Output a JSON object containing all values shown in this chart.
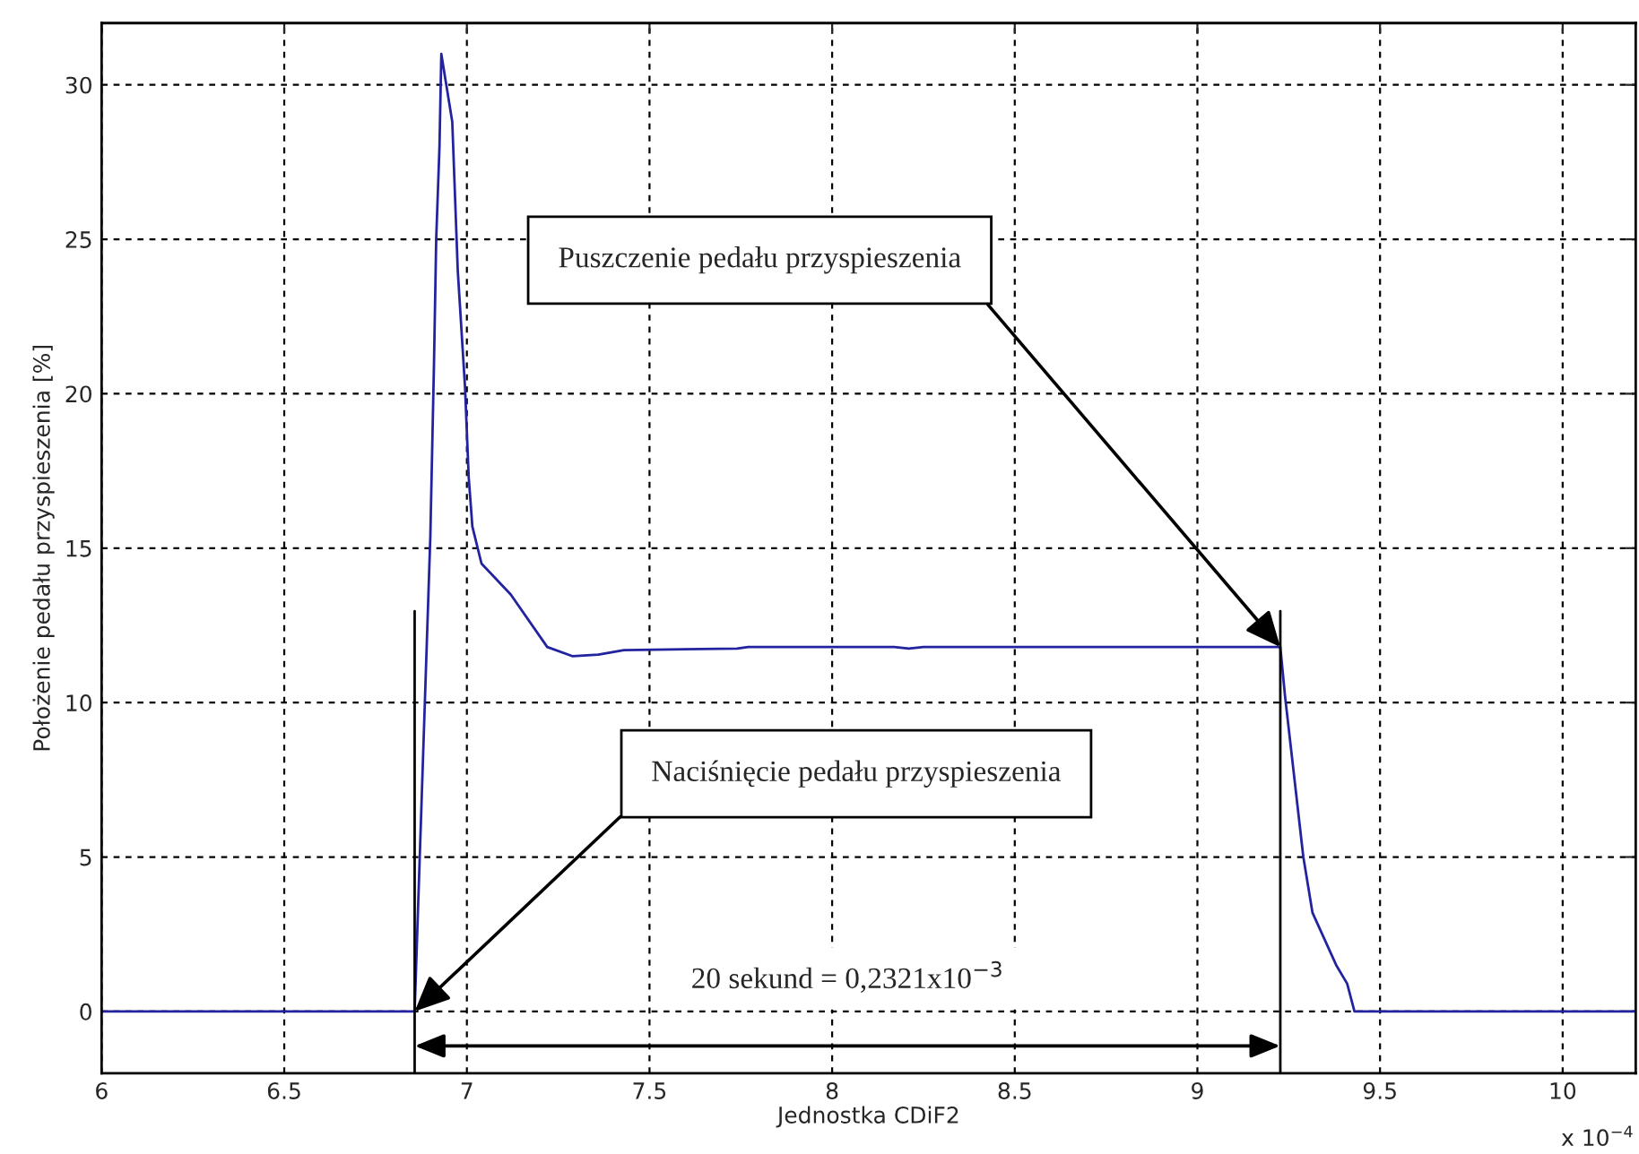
{
  "chart_data": {
    "type": "line",
    "xlabel": "Jednostka CDiF2",
    "ylabel": "Położenie pedału przyspieszenia [%]",
    "x": [
      6.0,
      6.857,
      6.9,
      6.91,
      6.916,
      6.925,
      6.93,
      6.96,
      6.975,
      6.995,
      7.005,
      7.015,
      7.04,
      7.12,
      7.22,
      7.29,
      7.36,
      7.43,
      7.74,
      7.77,
      8.0,
      8.17,
      8.21,
      8.25,
      9.0,
      9.227,
      9.24,
      9.29,
      9.315,
      9.38,
      9.41,
      9.43,
      10.2
    ],
    "series": [
      {
        "color": "#2323a0",
        "values": [
          0,
          0,
          15.4,
          21,
          25,
          28,
          31.0,
          28.8,
          24.0,
          20.2,
          17.3,
          15.7,
          14.5,
          13.5,
          11.8,
          11.5,
          11.55,
          11.7,
          11.75,
          11.8,
          11.8,
          11.8,
          11.75,
          11.8,
          11.8,
          11.8,
          10.2,
          5.0,
          3.2,
          1.5,
          0.9,
          0,
          0
        ]
      }
    ],
    "xlim": [
      6,
      10.2
    ],
    "xticks": [
      6,
      6.5,
      7,
      7.5,
      8,
      8.5,
      9,
      9.5,
      10
    ],
    "ylim": [
      -2,
      32
    ],
    "yticks": [
      0,
      5,
      10,
      15,
      20,
      25,
      30
    ],
    "ref_lines": [
      {
        "axis": "x",
        "value": 6.857
      },
      {
        "axis": "x",
        "value": 9.227
      }
    ],
    "grid": true,
    "line_style": "solid",
    "marker": "none",
    "annotations": [
      "Naciśnięcie pedału przyspieszenia",
      "Puszczenie pedału przyspieszenia",
      "20 sekund = 0,2321x10$^{−3}$",
      "x 10$^{−4}$"
    ]
  }
}
